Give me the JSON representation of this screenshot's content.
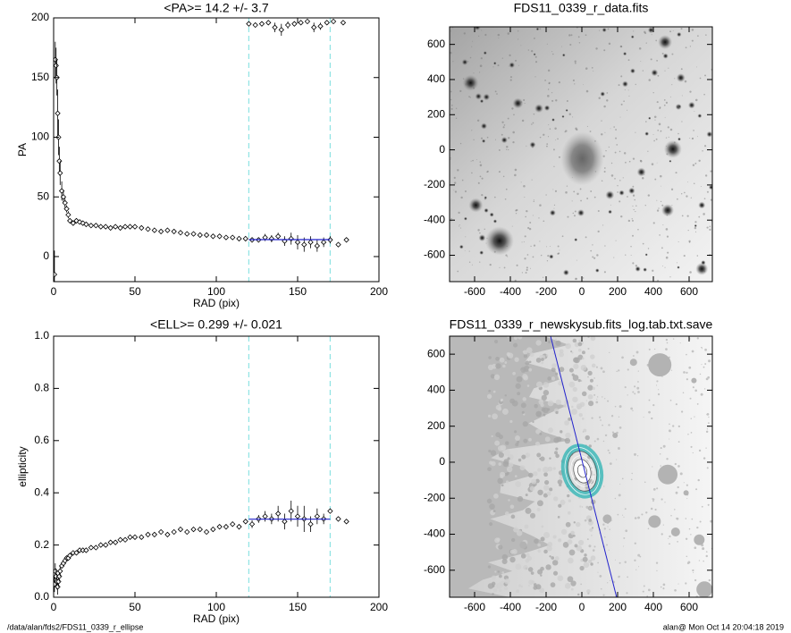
{
  "chart_data": [
    {
      "type": "scatter",
      "title": "<PA>=  14.2 +/-   3.7",
      "xlabel": "RAD (pix)",
      "ylabel": "PA",
      "xlim": [
        0,
        200
      ],
      "ylim": [
        -21,
        200
      ],
      "xticks": [
        0,
        50,
        100,
        150,
        200
      ],
      "yticks": [
        0,
        50,
        100,
        150,
        200
      ],
      "series": [
        {
          "color": "#000000",
          "x": [
            0.5,
            1,
            1.5,
            2,
            2.5,
            3,
            3.5,
            4,
            5,
            6,
            7,
            8,
            9,
            10,
            12,
            14,
            16,
            18,
            20,
            23,
            26,
            29,
            32,
            35,
            38,
            41,
            44,
            47,
            50,
            54,
            58,
            62,
            66,
            70,
            74,
            78,
            82,
            86,
            90,
            94,
            98,
            102,
            106,
            110,
            114,
            118,
            122,
            126,
            130,
            134,
            138,
            142,
            146,
            150,
            154,
            158,
            162,
            166,
            170,
            175,
            180
          ],
          "values": [
            -15,
            165,
            160,
            150,
            120,
            100,
            80,
            70,
            55,
            50,
            45,
            40,
            35,
            30,
            28,
            30,
            29,
            28,
            27,
            26,
            26,
            25,
            25,
            24,
            25,
            24,
            25,
            25,
            25,
            24,
            23,
            22,
            21,
            22,
            21,
            20,
            19,
            19,
            18,
            18,
            17,
            17,
            16,
            16,
            15,
            15,
            14,
            14,
            16,
            15,
            17,
            13,
            15,
            12,
            10,
            12,
            9,
            12,
            14,
            10,
            14
          ],
          "errors": [
            20,
            15,
            15,
            15,
            20,
            15,
            12,
            10,
            8,
            5,
            4,
            3,
            3,
            2,
            2,
            2,
            1.5,
            1.5,
            1.5,
            1.5,
            1,
            1,
            1,
            1,
            1,
            1,
            1,
            1,
            1,
            1,
            1,
            1,
            1,
            1,
            1,
            1,
            1,
            1,
            1,
            1.5,
            1.5,
            1.5,
            1.5,
            1.5,
            2,
            2,
            2,
            2,
            3,
            3,
            3,
            4,
            5,
            6,
            6,
            5,
            5,
            4,
            3,
            2,
            2
          ]
        },
        {
          "color": "#000000",
          "x": [
            120,
            124,
            128,
            132,
            136,
            140,
            144,
            148,
            152,
            156,
            160,
            164,
            168,
            172,
            178
          ],
          "values": [
            195,
            194,
            195,
            196,
            192,
            190,
            194,
            195,
            196,
            197,
            192,
            193,
            196,
            197,
            196
          ],
          "errors": [
            1,
            1,
            1,
            2,
            4,
            5,
            3,
            2,
            2,
            1,
            4,
            3,
            2,
            1,
            1
          ]
        }
      ],
      "vlines": [
        120,
        170
      ],
      "vline_color": "#8fe3e3",
      "fit": {
        "x": [
          120,
          170
        ],
        "y": 14.2,
        "color": "#2222cc"
      }
    },
    {
      "type": "scatter",
      "title": "<ELL>= 0.299 +/-  0.021",
      "xlabel": "RAD (pix)",
      "ylabel": "ellipticity",
      "xlim": [
        0,
        200
      ],
      "ylim": [
        0,
        1
      ],
      "xticks": [
        0,
        50,
        100,
        150,
        200
      ],
      "yticks": [
        {
          "value": 0,
          "label": "0.0"
        },
        {
          "value": 0.2,
          "label": "0.2"
        },
        {
          "value": 0.4,
          "label": "0.4"
        },
        {
          "value": 0.6,
          "label": "0.6"
        },
        {
          "value": 0.8,
          "label": "0.8"
        },
        {
          "value": 1,
          "label": "1.0"
        }
      ],
      "series": [
        {
          "color": "#000000",
          "x": [
            0.5,
            1,
            1.5,
            2,
            2.5,
            3,
            3.5,
            4,
            5,
            6,
            7,
            8,
            9,
            10,
            12,
            14,
            16,
            18,
            20,
            23,
            26,
            29,
            32,
            35,
            38,
            41,
            44,
            47,
            50,
            54,
            58,
            62,
            66,
            70,
            74,
            78,
            82,
            86,
            90,
            94,
            98,
            102,
            106,
            110,
            114,
            118,
            122,
            126,
            130,
            134,
            138,
            142,
            146,
            150,
            154,
            158,
            162,
            166,
            170,
            175,
            180
          ],
          "values": [
            0.05,
            0.1,
            0.08,
            0.06,
            0.04,
            0.06,
            0.08,
            0.1,
            0.12,
            0.13,
            0.14,
            0.15,
            0.15,
            0.16,
            0.17,
            0.17,
            0.18,
            0.18,
            0.18,
            0.19,
            0.19,
            0.2,
            0.2,
            0.21,
            0.21,
            0.22,
            0.22,
            0.23,
            0.23,
            0.23,
            0.24,
            0.24,
            0.25,
            0.24,
            0.25,
            0.26,
            0.25,
            0.26,
            0.26,
            0.25,
            0.26,
            0.27,
            0.27,
            0.28,
            0.27,
            0.29,
            0.28,
            0.3,
            0.31,
            0.3,
            0.32,
            0.29,
            0.33,
            0.31,
            0.3,
            0.28,
            0.31,
            0.3,
            0.33,
            0.3,
            0.29
          ],
          "errors": [
            0.03,
            0.03,
            0.03,
            0.03,
            0.03,
            0.02,
            0.02,
            0.02,
            0.01,
            0.01,
            0.005,
            0.005,
            0.005,
            0.005,
            0.005,
            0.005,
            0.005,
            0.005,
            0.005,
            0.005,
            0.005,
            0.005,
            0.005,
            0.005,
            0.005,
            0.005,
            0.005,
            0.005,
            0.005,
            0.005,
            0.005,
            0.005,
            0.005,
            0.005,
            0.005,
            0.005,
            0.005,
            0.005,
            0.005,
            0.008,
            0.008,
            0.008,
            0.01,
            0.01,
            0.01,
            0.01,
            0.015,
            0.015,
            0.02,
            0.02,
            0.03,
            0.03,
            0.04,
            0.04,
            0.05,
            0.03,
            0.03,
            0.02,
            0.01,
            0.005,
            0.005
          ]
        }
      ],
      "vlines": [
        120,
        170
      ],
      "vline_color": "#8fe3e3",
      "fit": {
        "x": [
          120,
          170
        ],
        "y": 0.299,
        "color": "#2222cc"
      }
    },
    {
      "type": "image",
      "title": "FDS11_0339_r_data.fits",
      "xlim": [
        -740,
        730
      ],
      "ylim": [
        -750,
        700
      ],
      "xticks": [
        -600,
        -400,
        -200,
        0,
        200,
        400,
        600
      ],
      "yticks": [
        -600,
        -400,
        -200,
        0,
        200,
        400,
        600
      ]
    },
    {
      "type": "image",
      "title": "FDS11_0339_r_newskysub.fits_log.tab.txt.save",
      "xlim": [
        -740,
        730
      ],
      "ylim": [
        -750,
        700
      ],
      "xticks": [
        -600,
        -400,
        -200,
        0,
        200,
        400,
        600
      ],
      "yticks": [
        -600,
        -400,
        -200,
        0,
        200,
        400,
        600
      ]
    }
  ],
  "footer": {
    "path": "/data/alan/fds2/FDS11_0339_r_ellipse",
    "stamp": "alan@  Mon Oct 14 20:04:18 2019"
  }
}
